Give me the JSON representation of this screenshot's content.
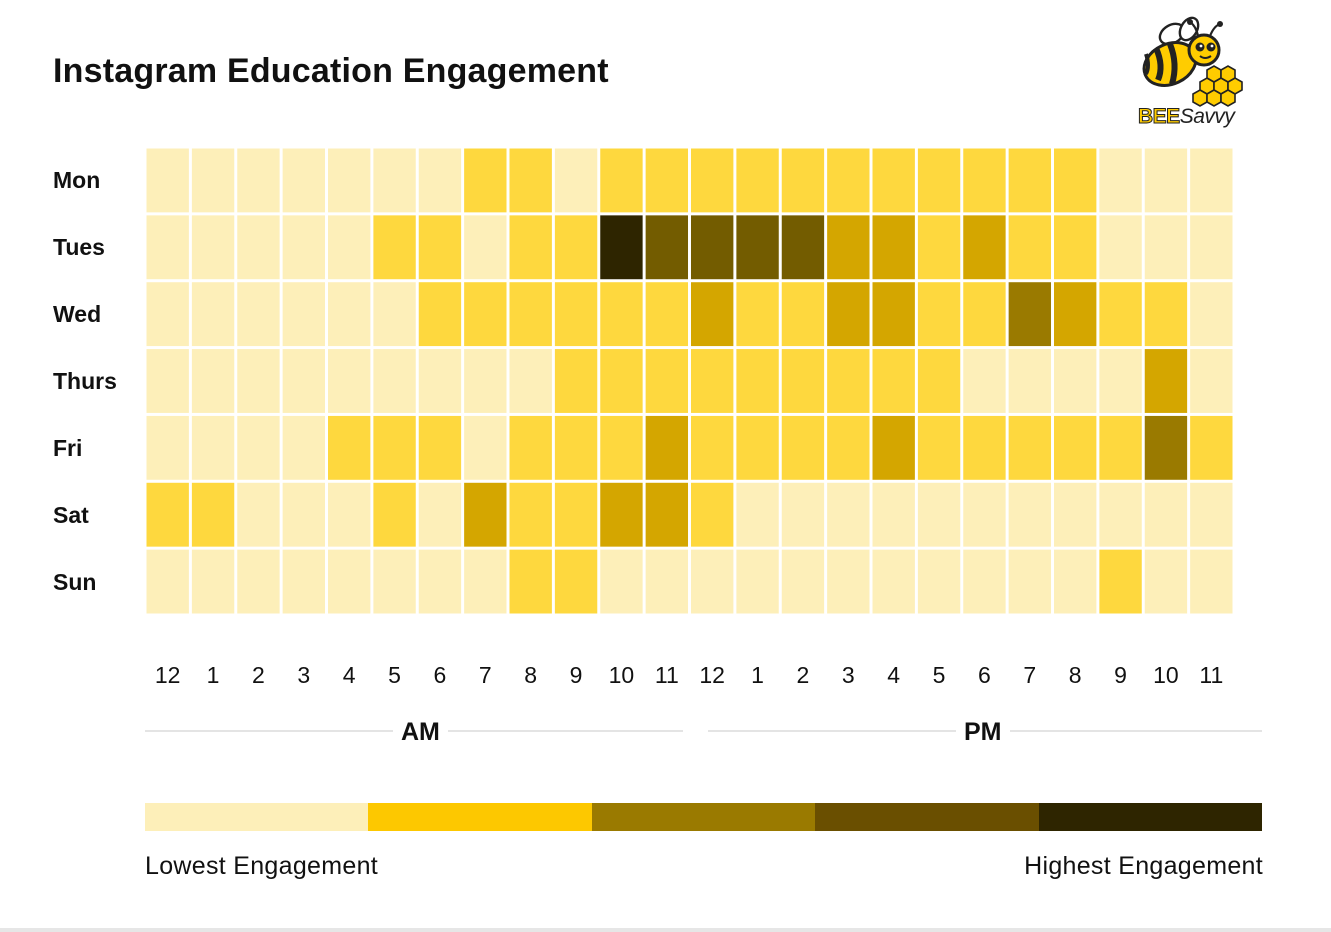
{
  "title": "Instagram Education Engagement",
  "logo": {
    "name": "bee-savvy-logo",
    "text_bee": "BEE",
    "text_savvy": "Savvy"
  },
  "colors": {
    "level1": "#fdefb9",
    "level2": "#fed83e",
    "level3": "#d4a600",
    "level4": "#9a7a00",
    "level5": "#735c00",
    "level6": "#2e2500"
  },
  "chart_data": {
    "type": "heatmap",
    "title": "Instagram Education Engagement",
    "y_categories": [
      "Mon",
      "Tues",
      "Wed",
      "Thurs",
      "Fri",
      "Sat",
      "Sun"
    ],
    "x_categories": [
      "12",
      "1",
      "2",
      "3",
      "4",
      "5",
      "6",
      "7",
      "8",
      "9",
      "10",
      "11",
      "12",
      "1",
      "2",
      "3",
      "4",
      "5",
      "6",
      "7",
      "8",
      "9",
      "10",
      "11"
    ],
    "x_groups": [
      {
        "label": "AM",
        "from": 0,
        "to": 11
      },
      {
        "label": "PM",
        "from": 12,
        "to": 23
      }
    ],
    "scale": {
      "min": 1,
      "max": 6
    },
    "values": [
      [
        1,
        1,
        1,
        1,
        1,
        1,
        1,
        2,
        2,
        1,
        2,
        2,
        2,
        2,
        2,
        2,
        2,
        2,
        2,
        2,
        2,
        1,
        1,
        1
      ],
      [
        1,
        1,
        1,
        1,
        1,
        2,
        2,
        1,
        2,
        2,
        6,
        5,
        5,
        5,
        5,
        3,
        3,
        2,
        3,
        2,
        2,
        1,
        1,
        1
      ],
      [
        1,
        1,
        1,
        1,
        1,
        1,
        2,
        2,
        2,
        2,
        2,
        2,
        3,
        2,
        2,
        3,
        3,
        2,
        2,
        4,
        3,
        2,
        2,
        1
      ],
      [
        1,
        1,
        1,
        1,
        1,
        1,
        1,
        1,
        1,
        2,
        2,
        2,
        2,
        2,
        2,
        2,
        2,
        2,
        1,
        1,
        1,
        1,
        3,
        1
      ],
      [
        1,
        1,
        1,
        1,
        2,
        2,
        2,
        1,
        2,
        2,
        2,
        3,
        2,
        2,
        2,
        2,
        3,
        2,
        2,
        2,
        2,
        2,
        4,
        2
      ],
      [
        2,
        2,
        1,
        1,
        1,
        2,
        1,
        3,
        2,
        2,
        3,
        3,
        2,
        1,
        1,
        1,
        1,
        1,
        1,
        1,
        1,
        1,
        1,
        1
      ],
      [
        1,
        1,
        1,
        1,
        1,
        1,
        1,
        1,
        2,
        2,
        1,
        1,
        1,
        1,
        1,
        1,
        1,
        1,
        1,
        1,
        1,
        2,
        1,
        1
      ]
    ],
    "legend": {
      "low_label": "Lowest Engagement",
      "high_label": "Highest Engagement",
      "colors": [
        "#fdefb9",
        "#fdc800",
        "#9a7a00",
        "#6a4f00",
        "#2e2500"
      ]
    }
  }
}
